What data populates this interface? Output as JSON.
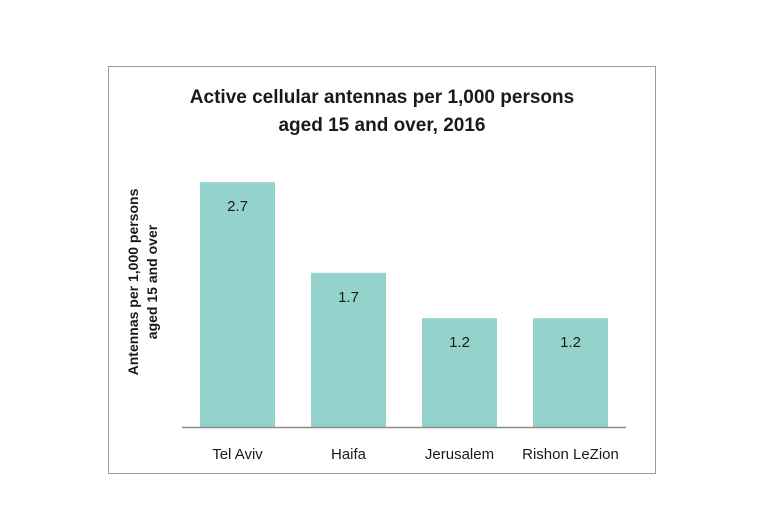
{
  "chart_data": {
    "type": "bar",
    "title_lines": [
      "Active cellular antennas per 1,000 persons",
      "aged 15 and over, 2016"
    ],
    "ylabel_lines": [
      "Antennas per 1,000 persons",
      "aged 15 and over"
    ],
    "xlabel": "",
    "categories": [
      "Tel Aviv",
      "Haifa",
      "Jerusalem",
      "Rishon LeZion"
    ],
    "values": [
      2.7,
      1.7,
      1.2,
      1.2
    ],
    "value_labels": [
      "2.7",
      "1.7",
      "1.2",
      "1.2"
    ],
    "ylim": [
      0,
      2.9
    ],
    "grid": false,
    "legend": "none",
    "bar_color": "#93d3cb",
    "axis_color": "#8c8c8c",
    "text_color": "#1a1a1a"
  }
}
